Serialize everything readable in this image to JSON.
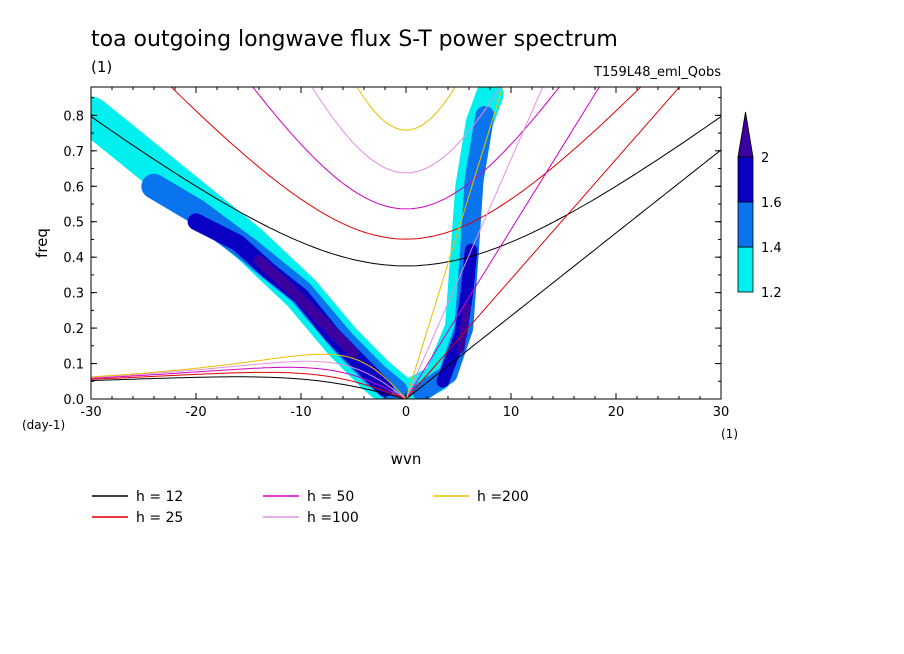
{
  "chart_data": {
    "type": "heatmap",
    "title": "toa outgoing longwave flux S-T power spectrum",
    "subtitle_left": "(1)",
    "subtitle_right": "T159L48_eml_Qobs",
    "xlabel": "wvn",
    "ylabel": "freq",
    "x_unit": "(1)",
    "y_unit": "(day-1)",
    "xlim": [
      -30,
      30
    ],
    "ylim": [
      0,
      0.88
    ],
    "x_ticks": [
      -30,
      -20,
      -10,
      0,
      10,
      20,
      30
    ],
    "x_tick_labels": [
      "-30",
      "-20",
      "-10",
      "0",
      "10",
      "20",
      "30"
    ],
    "y_ticks": [
      0,
      0.1,
      0.2,
      0.3,
      0.4,
      0.5,
      0.6,
      0.7,
      0.8
    ],
    "y_tick_labels": [
      "0.0",
      "0.1",
      "0.2",
      "0.3",
      "0.4",
      "0.5",
      "0.6",
      "0.7",
      "0.8"
    ],
    "colorbar": {
      "levels": [
        1.2,
        1.4,
        1.6,
        2
      ],
      "labels": [
        "1.2",
        "1.4",
        "1.6",
        "2"
      ],
      "colors": [
        "#00f0f0",
        "#0a74ef",
        "#0a00c4",
        "#3c00a0"
      ]
    },
    "contour_bands": [
      {
        "level": "1.2-1.4",
        "color": "#00f0f0",
        "segments": [
          {
            "x": [
              -30,
              -25,
              -20,
              -15,
              -10,
              -6,
              -3,
              -1
            ],
            "y": [
              0.8,
              0.68,
              0.56,
              0.44,
              0.3,
              0.16,
              0.07,
              0.02
            ],
            "half_width": 1.8
          },
          {
            "x": [
              0.5,
              3,
              5,
              5.5,
              6,
              7,
              8
            ],
            "y": [
              0.02,
              0.06,
              0.2,
              0.4,
              0.6,
              0.78,
              0.86
            ],
            "half_width": 1.3
          }
        ]
      },
      {
        "level": "1.4-1.6",
        "color": "#0a74ef",
        "segments": [
          {
            "x": [
              -24,
              -20,
              -15,
              -10,
              -6,
              -3,
              -1
            ],
            "y": [
              0.6,
              0.53,
              0.42,
              0.3,
              0.16,
              0.07,
              0.02
            ],
            "half_width": 1.2
          },
          {
            "x": [
              1.5,
              4,
              5.5,
              6,
              6.5,
              7.5
            ],
            "y": [
              0.02,
              0.07,
              0.2,
              0.4,
              0.62,
              0.8
            ],
            "half_width": 0.9
          }
        ]
      },
      {
        "level": "1.6-2",
        "color": "#0a00c4",
        "segments": [
          {
            "x": [
              -20,
              -16,
              -13,
              -10,
              -7,
              -4,
              -2
            ],
            "y": [
              0.5,
              0.44,
              0.36,
              0.29,
              0.18,
              0.09,
              0.03
            ],
            "half_width": 0.8
          },
          {
            "x": [
              3.5,
              5.2,
              5.8,
              6.2
            ],
            "y": [
              0.05,
              0.18,
              0.3,
              0.42
            ],
            "half_width": 0.6
          }
        ]
      },
      {
        "level": ">2",
        "color": "#3c00a0",
        "segments": [
          {
            "x": [
              -14,
              -11,
              -8,
              -5
            ],
            "y": [
              0.39,
              0.31,
              0.22,
              0.13
            ],
            "half_width": 0.5
          },
          {
            "x": [
              5.2,
              5.8
            ],
            "y": [
              0.14,
              0.26
            ],
            "half_width": 0.35
          }
        ]
      }
    ],
    "series": [
      {
        "name": "h = 12",
        "color": "#000000",
        "h": 12
      },
      {
        "name": "h = 25",
        "color": "#e00000",
        "h": 25
      },
      {
        "name": "h = 50",
        "color": "#d000c0",
        "h": 50
      },
      {
        "name": "h =100",
        "color": "#e090e0",
        "h": 100
      },
      {
        "name": "h =200",
        "color": "#e8c000",
        "h": 200
      }
    ],
    "legend_position": "bottom"
  }
}
